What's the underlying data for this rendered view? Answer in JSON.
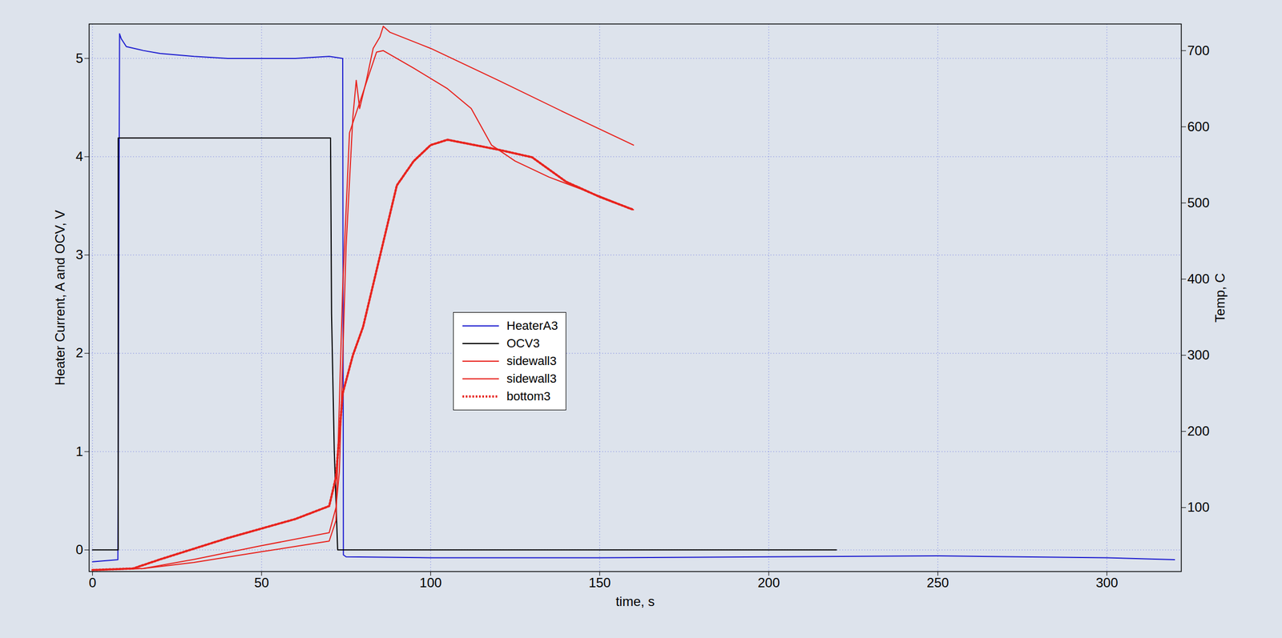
{
  "chart_data": {
    "type": "line",
    "x_label": "time, s",
    "y_label": "Heater Current, A and OCV, V",
    "y2_label": "Temp, C",
    "xlim": [
      -1,
      322
    ],
    "xticks": [
      0,
      50,
      100,
      150,
      200,
      250,
      300
    ],
    "ylim": [
      -0.22,
      5.35
    ],
    "yticks": [
      0,
      1,
      2,
      3,
      4,
      5
    ],
    "y2lim": [
      16,
      735
    ],
    "y2ticks": [
      100,
      200,
      300,
      400,
      500,
      600,
      700
    ],
    "grid": true,
    "legend": "center",
    "series": [
      {
        "name": "HeaterA3",
        "color": "#1f1fd0",
        "line_style": "solid",
        "x": [
          0,
          7.5,
          8,
          8.5,
          10,
          15,
          20,
          30,
          40,
          50,
          60,
          70,
          74,
          74.2,
          75,
          100,
          150,
          200,
          250,
          300,
          320
        ],
        "values": [
          -0.12,
          -0.1,
          5.25,
          5.2,
          5.12,
          5.08,
          5.05,
          5.02,
          5.0,
          5.0,
          5.0,
          5.02,
          5.0,
          -0.05,
          -0.07,
          -0.08,
          -0.08,
          -0.07,
          -0.06,
          -0.08,
          -0.1
        ]
      },
      {
        "name": "OCV3",
        "color": "#000000",
        "line_style": "solid",
        "x": [
          0,
          7.6,
          7.6,
          70.4,
          70.7,
          71.5,
          72.5,
          220
        ],
        "values": [
          0,
          0,
          4.19,
          4.19,
          2.4,
          1.0,
          0,
          0
        ]
      },
      {
        "name": "sidewall3",
        "color": "#e8231d",
        "line_style": "solid",
        "axis": "y2",
        "x": [
          0,
          15,
          30,
          50,
          70,
          72,
          73,
          75,
          77,
          78,
          79,
          81,
          83,
          85,
          86,
          88,
          100,
          120,
          140,
          160
        ],
        "values": [
          18,
          20,
          32,
          50,
          67,
          100,
          147,
          443,
          613,
          661,
          624,
          661,
          703,
          718,
          732,
          724,
          703,
          661,
          618,
          576
        ]
      },
      {
        "name": "sidewall3",
        "color": "#e8231d",
        "line_style": "solid",
        "axis": "y2",
        "x": [
          0,
          15,
          30,
          50,
          70,
          72,
          74,
          76,
          80,
          84,
          86,
          95,
          105,
          112,
          118,
          125,
          135,
          150,
          160
        ],
        "values": [
          18,
          20,
          28,
          42,
          56,
          83,
          390,
          592,
          645,
          698,
          700,
          677,
          650,
          624,
          576,
          555,
          534,
          509,
          491
        ]
      },
      {
        "name": "bottom3",
        "color": "#e8231d",
        "line_style": "dotted",
        "axis": "y2",
        "x": [
          0,
          12,
          20,
          40,
          60,
          70,
          72,
          74,
          77,
          80,
          85,
          90,
          95,
          100,
          105,
          120,
          130,
          140,
          150,
          160
        ],
        "values": [
          18,
          20,
          32,
          60,
          85,
          102,
          140,
          250,
          300,
          337,
          430,
          523,
          555,
          576,
          583,
          570,
          560,
          528,
          508,
          491
        ]
      }
    ]
  }
}
